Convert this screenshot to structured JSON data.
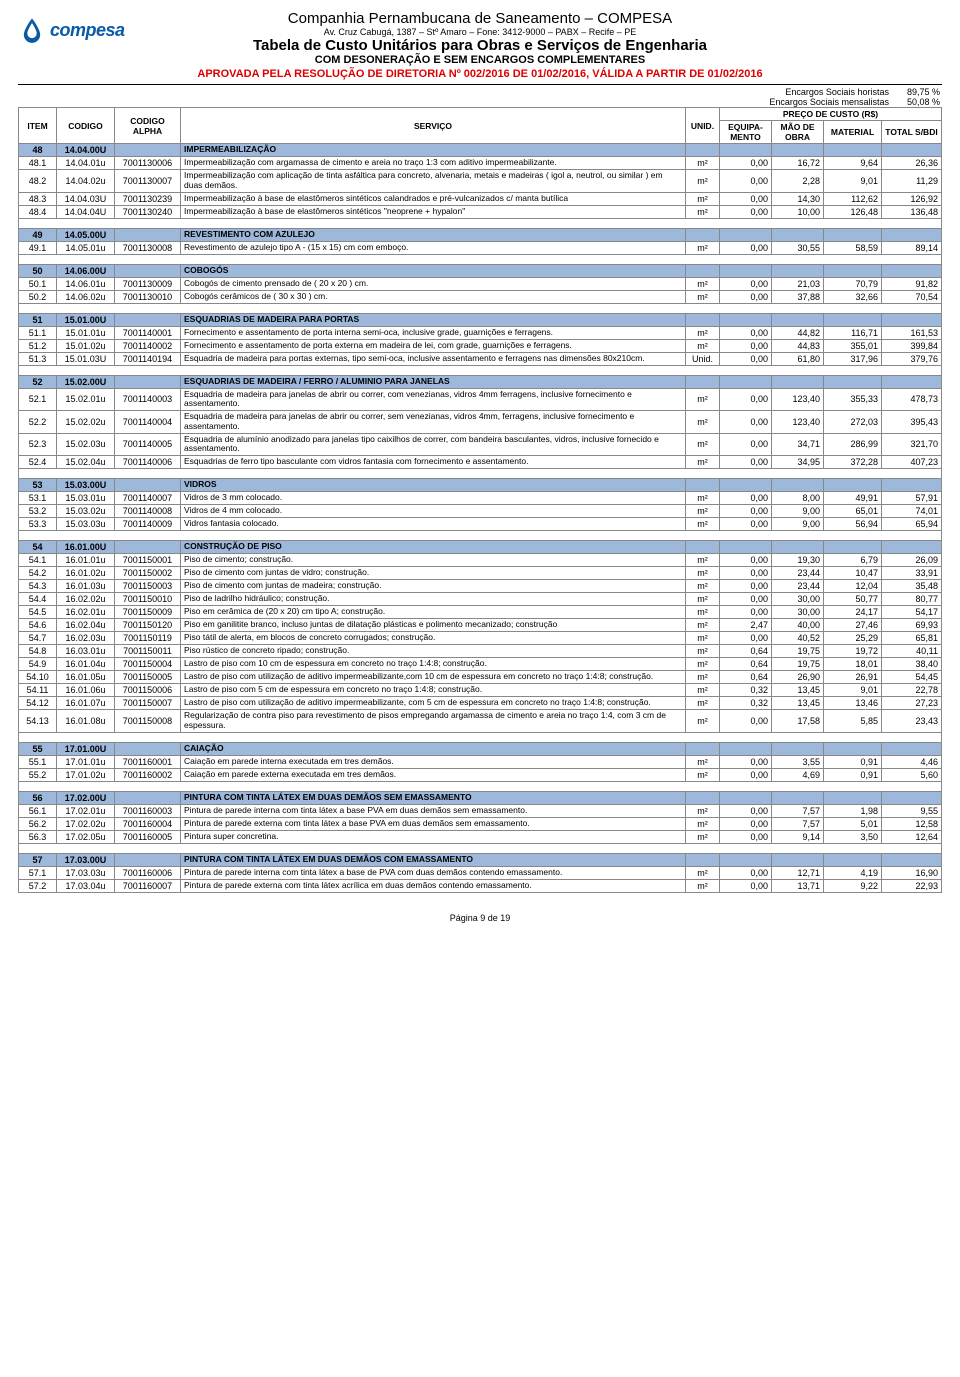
{
  "header": {
    "logo_text": "compesa",
    "company": "Companhia Pernambucana de Saneamento – COMPESA",
    "address": "Av. Cruz Cabugá, 1387 – Stº Amaro – Fone: 3412-9000 – PABX – Recife – PE",
    "title": "Tabela de Custo Unitários para Obras e Serviços de Engenharia",
    "subtitle": "COM DESONERAÇÃO E SEM ENCARGOS COMPLEMENTARES",
    "approved": "APROVADA PELA RESOLUÇÃO DE DIRETORIA Nº 002/2016 DE 01/02/2016, VÁLIDA A PARTIR DE 01/02/2016",
    "enc_horistas_label": "Encargos Sociais horistas",
    "enc_horistas_val": "89,75 %",
    "enc_mensal_label": "Encargos Sociais mensalistas",
    "enc_mensal_val": "50,08 %"
  },
  "th": {
    "item": "ITEM",
    "codigo": "CODIGO",
    "alpha": "CODIGO ALPHA",
    "servico": "SERVIÇO",
    "unid": "UNID.",
    "preco": "PREÇO DE CUSTO (R$)",
    "equip": "EQUIPA-MENTO",
    "mao": "MÃO DE OBRA",
    "mat": "MATERIAL",
    "total": "TOTAL S/BDI"
  },
  "colors": {
    "section_bg": "#9db8da",
    "approved": "#d00000",
    "logo": "#0a5aa5"
  },
  "rows": [
    {
      "type": "section",
      "item": "48",
      "codigo": "14.04.00U",
      "serv": "IMPERMEABILIZAÇÃO"
    },
    {
      "type": "data",
      "item": "48.1",
      "codigo": "14.04.01u",
      "alpha": "7001130006",
      "serv": "Impermeabilização com argamassa de cimento e areia no traço 1:3 com aditivo impermeabilizante.",
      "unid": "m²",
      "eq": "0,00",
      "mao": "16,72",
      "mat": "9,64",
      "tot": "26,36"
    },
    {
      "type": "data",
      "item": "48.2",
      "codigo": "14.04.02u",
      "alpha": "7001130007",
      "serv": "Impermeabilização com aplicação de tinta asfáltica para concreto, alvenaria, metais e madeiras ( igol a, neutrol, ou similar ) em duas demãos.",
      "unid": "m²",
      "eq": "0,00",
      "mao": "2,28",
      "mat": "9,01",
      "tot": "11,29"
    },
    {
      "type": "data",
      "item": "48.3",
      "codigo": "14.04.03U",
      "alpha": "7001130239",
      "serv": "Impermeabilização à base de elastômeros sintéticos calandrados e pré-vulcanizados c/ manta butílica",
      "unid": "m²",
      "eq": "0,00",
      "mao": "14,30",
      "mat": "112,62",
      "tot": "126,92"
    },
    {
      "type": "data",
      "item": "48.4",
      "codigo": "14.04.04U",
      "alpha": "7001130240",
      "serv": "Impermeabilização à base de elastômeros sintéticos \"neoprene + hypalon\"",
      "unid": "m²",
      "eq": "0,00",
      "mao": "10,00",
      "mat": "126,48",
      "tot": "136,48"
    },
    {
      "type": "blank"
    },
    {
      "type": "section",
      "item": "49",
      "codigo": "14.05.00U",
      "serv": "REVESTIMENTO COM AZULEJO"
    },
    {
      "type": "data",
      "item": "49.1",
      "codigo": "14.05.01u",
      "alpha": "7001130008",
      "serv": "Revestimento de azulejo tipo A - (15 x 15) cm com emboço.",
      "unid": "m²",
      "eq": "0,00",
      "mao": "30,55",
      "mat": "58,59",
      "tot": "89,14"
    },
    {
      "type": "blank"
    },
    {
      "type": "section",
      "item": "50",
      "codigo": "14.06.00U",
      "serv": "COBOGÓS"
    },
    {
      "type": "data",
      "item": "50.1",
      "codigo": "14.06.01u",
      "alpha": "7001130009",
      "serv": "Cobogós de cimento prensado de ( 20 x 20 ) cm.",
      "unid": "m²",
      "eq": "0,00",
      "mao": "21,03",
      "mat": "70,79",
      "tot": "91,82"
    },
    {
      "type": "data",
      "item": "50.2",
      "codigo": "14.06.02u",
      "alpha": "7001130010",
      "serv": "Cobogós cerâmicos de ( 30 x 30 ) cm.",
      "unid": "m²",
      "eq": "0,00",
      "mao": "37,88",
      "mat": "32,66",
      "tot": "70,54"
    },
    {
      "type": "blank"
    },
    {
      "type": "section",
      "item": "51",
      "codigo": "15.01.00U",
      "serv": "ESQUADRIAS DE MADEIRA PARA PORTAS"
    },
    {
      "type": "data",
      "item": "51.1",
      "codigo": "15.01.01u",
      "alpha": "7001140001",
      "serv": "Fornecimento e assentamento de porta interna semi-oca, inclusive grade, guarnições e ferragens.",
      "unid": "m²",
      "eq": "0,00",
      "mao": "44,82",
      "mat": "116,71",
      "tot": "161,53"
    },
    {
      "type": "data",
      "item": "51.2",
      "codigo": "15.01.02u",
      "alpha": "7001140002",
      "serv": "Fornecimento e assentamento de porta externa em madeira de lei, com grade, guarnições e ferragens.",
      "unid": "m²",
      "eq": "0,00",
      "mao": "44,83",
      "mat": "355,01",
      "tot": "399,84"
    },
    {
      "type": "data",
      "item": "51.3",
      "codigo": "15.01.03U",
      "alpha": "7001140194",
      "serv": "Esquadria de madeira para portas externas, tipo semi-oca, inclusive assentamento e ferragens nas dimensões 80x210cm.",
      "unid": "Unid.",
      "eq": "0,00",
      "mao": "61,80",
      "mat": "317,96",
      "tot": "379,76"
    },
    {
      "type": "blank"
    },
    {
      "type": "section",
      "item": "52",
      "codigo": "15.02.00U",
      "serv": "ESQUADRIAS DE MADEIRA / FERRO / ALUMINIO PARA JANELAS"
    },
    {
      "type": "data",
      "item": "52.1",
      "codigo": "15.02.01u",
      "alpha": "7001140003",
      "serv": "Esquadria de madeira para janelas de abrir ou correr, com venezianas, vidros 4mm ferragens, inclusive fornecimento e assentamento.",
      "unid": "m²",
      "eq": "0,00",
      "mao": "123,40",
      "mat": "355,33",
      "tot": "478,73"
    },
    {
      "type": "data",
      "item": "52.2",
      "codigo": "15.02.02u",
      "alpha": "7001140004",
      "serv": "Esquadria de madeira para janelas de abrir ou correr, sem venezianas, vidros 4mm, ferragens, inclusive fornecimento e assentamento.",
      "unid": "m²",
      "eq": "0,00",
      "mao": "123,40",
      "mat": "272,03",
      "tot": "395,43"
    },
    {
      "type": "data",
      "item": "52.3",
      "codigo": "15.02.03u",
      "alpha": "7001140005",
      "serv": "Esquadria de alumínio anodizado para janelas tipo caixilhos de correr, com bandeira basculantes, vidros, inclusive fornecido e assentamento.",
      "unid": "m²",
      "eq": "0,00",
      "mao": "34,71",
      "mat": "286,99",
      "tot": "321,70"
    },
    {
      "type": "data",
      "item": "52.4",
      "codigo": "15.02.04u",
      "alpha": "7001140006",
      "serv": "Esquadrias de ferro tipo basculante com vidros fantasia com fornecimento e assentamento.",
      "unid": "m²",
      "eq": "0,00",
      "mao": "34,95",
      "mat": "372,28",
      "tot": "407,23"
    },
    {
      "type": "blank"
    },
    {
      "type": "section",
      "item": "53",
      "codigo": "15.03.00U",
      "serv": "VIDROS"
    },
    {
      "type": "data",
      "item": "53.1",
      "codigo": "15.03.01u",
      "alpha": "7001140007",
      "serv": "Vidros de 3 mm colocado.",
      "unid": "m²",
      "eq": "0,00",
      "mao": "8,00",
      "mat": "49,91",
      "tot": "57,91"
    },
    {
      "type": "data",
      "item": "53.2",
      "codigo": "15.03.02u",
      "alpha": "7001140008",
      "serv": "Vidros de 4 mm colocado.",
      "unid": "m²",
      "eq": "0,00",
      "mao": "9,00",
      "mat": "65,01",
      "tot": "74,01"
    },
    {
      "type": "data",
      "item": "53.3",
      "codigo": "15.03.03u",
      "alpha": "7001140009",
      "serv": "Vidros fantasia colocado.",
      "unid": "m²",
      "eq": "0,00",
      "mao": "9,00",
      "mat": "56,94",
      "tot": "65,94"
    },
    {
      "type": "blank"
    },
    {
      "type": "section",
      "item": "54",
      "codigo": "16.01.00U",
      "serv": "CONSTRUÇÃO DE PISO"
    },
    {
      "type": "data",
      "item": "54.1",
      "codigo": "16.01.01u",
      "alpha": "7001150001",
      "serv": "Piso de cimento; construção.",
      "unid": "m²",
      "eq": "0,00",
      "mao": "19,30",
      "mat": "6,79",
      "tot": "26,09"
    },
    {
      "type": "data",
      "item": "54.2",
      "codigo": "16.01.02u",
      "alpha": "7001150002",
      "serv": "Piso de cimento com juntas de vidro; construção.",
      "unid": "m²",
      "eq": "0,00",
      "mao": "23,44",
      "mat": "10,47",
      "tot": "33,91"
    },
    {
      "type": "data",
      "item": "54.3",
      "codigo": "16.01.03u",
      "alpha": "7001150003",
      "serv": "Piso de cimento com juntas de madeira; construção.",
      "unid": "m²",
      "eq": "0,00",
      "mao": "23,44",
      "mat": "12,04",
      "tot": "35,48"
    },
    {
      "type": "data",
      "item": "54.4",
      "codigo": "16.02.02u",
      "alpha": "7001150010",
      "serv": "Piso de ladrilho hidráulico; construção.",
      "unid": "m²",
      "eq": "0,00",
      "mao": "30,00",
      "mat": "50,77",
      "tot": "80,77"
    },
    {
      "type": "data",
      "item": "54.5",
      "codigo": "16.02.01u",
      "alpha": "7001150009",
      "serv": "Piso em cerâmica de (20 x 20) cm tipo A; construção.",
      "unid": "m²",
      "eq": "0,00",
      "mao": "30,00",
      "mat": "24,17",
      "tot": "54,17"
    },
    {
      "type": "data",
      "item": "54.6",
      "codigo": "16.02.04u",
      "alpha": "7001150120",
      "serv": "Piso em ganilitite branco, incluso juntas de dilatação plásticas e polimento mecanizado; construção",
      "unid": "m²",
      "eq": "2,47",
      "mao": "40,00",
      "mat": "27,46",
      "tot": "69,93"
    },
    {
      "type": "data",
      "item": "54.7",
      "codigo": "16.02.03u",
      "alpha": "7001150119",
      "serv": "Piso tátil de alerta, em blocos de concreto corrugados; construção.",
      "unid": "m²",
      "eq": "0,00",
      "mao": "40,52",
      "mat": "25,29",
      "tot": "65,81"
    },
    {
      "type": "data",
      "item": "54.8",
      "codigo": "16.03.01u",
      "alpha": "7001150011",
      "serv": "Piso rústico de concreto ripado; construção.",
      "unid": "m²",
      "eq": "0,64",
      "mao": "19,75",
      "mat": "19,72",
      "tot": "40,11"
    },
    {
      "type": "data",
      "item": "54.9",
      "codigo": "16.01.04u",
      "alpha": "7001150004",
      "serv": "Lastro de piso com 10 cm de espessura em concreto no traço 1:4:8; construção.",
      "unid": "m²",
      "eq": "0,64",
      "mao": "19,75",
      "mat": "18,01",
      "tot": "38,40"
    },
    {
      "type": "data",
      "item": "54.10",
      "codigo": "16.01.05u",
      "alpha": "7001150005",
      "serv": "Lastro de piso com utilização de aditivo impermeabilizante,com 10 cm de espessura em concreto no traço 1:4:8; construção.",
      "unid": "m²",
      "eq": "0,64",
      "mao": "26,90",
      "mat": "26,91",
      "tot": "54,45"
    },
    {
      "type": "data",
      "item": "54.11",
      "codigo": "16.01.06u",
      "alpha": "7001150006",
      "serv": "Lastro de piso com 5 cm de espessura em concreto no traço 1:4:8; construção.",
      "unid": "m²",
      "eq": "0,32",
      "mao": "13,45",
      "mat": "9,01",
      "tot": "22,78"
    },
    {
      "type": "data",
      "item": "54.12",
      "codigo": "16.01.07u",
      "alpha": "7001150007",
      "serv": "Lastro de piso com utilização de aditivo impermeabilizante, com 5 cm de espessura em concreto no traço 1:4:8; construção.",
      "unid": "m²",
      "eq": "0,32",
      "mao": "13,45",
      "mat": "13,46",
      "tot": "27,23"
    },
    {
      "type": "data",
      "item": "54.13",
      "codigo": "16.01.08u",
      "alpha": "7001150008",
      "serv": "Regularização de contra piso para revestimento de pisos empregando argamassa de cimento e areia no traço 1:4, com 3 cm de espessura.",
      "unid": "m²",
      "eq": "0,00",
      "mao": "17,58",
      "mat": "5,85",
      "tot": "23,43"
    },
    {
      "type": "blank"
    },
    {
      "type": "section",
      "item": "55",
      "codigo": "17.01.00U",
      "serv": "CAIAÇÃO"
    },
    {
      "type": "data",
      "item": "55.1",
      "codigo": "17.01.01u",
      "alpha": "7001160001",
      "serv": "Caiação em parede interna executada em tres demãos.",
      "unid": "m²",
      "eq": "0,00",
      "mao": "3,55",
      "mat": "0,91",
      "tot": "4,46"
    },
    {
      "type": "data",
      "item": "55.2",
      "codigo": "17.01.02u",
      "alpha": "7001160002",
      "serv": "Caiação em parede externa executada em tres demãos.",
      "unid": "m²",
      "eq": "0,00",
      "mao": "4,69",
      "mat": "0,91",
      "tot": "5,60"
    },
    {
      "type": "blank"
    },
    {
      "type": "section",
      "item": "56",
      "codigo": "17.02.00U",
      "serv": "PINTURA COM TINTA LÁTEX EM DUAS DEMÃOS SEM EMASSAMENTO"
    },
    {
      "type": "data",
      "item": "56.1",
      "codigo": "17.02.01u",
      "alpha": "7001160003",
      "serv": "Pintura de parede interna com tinta látex a base PVA em duas demãos sem emassamento.",
      "unid": "m²",
      "eq": "0,00",
      "mao": "7,57",
      "mat": "1,98",
      "tot": "9,55"
    },
    {
      "type": "data",
      "item": "56.2",
      "codigo": "17.02.02u",
      "alpha": "7001160004",
      "serv": "Pintura de parede externa com tinta látex a base PVA em duas demãos sem emassamento.",
      "unid": "m²",
      "eq": "0,00",
      "mao": "7,57",
      "mat": "5,01",
      "tot": "12,58"
    },
    {
      "type": "data",
      "item": "56.3",
      "codigo": "17.02.05u",
      "alpha": "7001160005",
      "serv": "Pintura super concretina.",
      "unid": "m²",
      "eq": "0,00",
      "mao": "9,14",
      "mat": "3,50",
      "tot": "12,64"
    },
    {
      "type": "blank"
    },
    {
      "type": "section",
      "item": "57",
      "codigo": "17.03.00U",
      "serv": "PINTURA COM TINTA LÁTEX EM DUAS DEMÃOS COM EMASSAMENTO"
    },
    {
      "type": "data",
      "item": "57.1",
      "codigo": "17.03.03u",
      "alpha": "7001160006",
      "serv": "Pintura de parede interna com tinta látex a base de PVA com duas demãos contendo emassamento.",
      "unid": "m²",
      "eq": "0,00",
      "mao": "12,71",
      "mat": "4,19",
      "tot": "16,90"
    },
    {
      "type": "data",
      "item": "57.2",
      "codigo": "17.03.04u",
      "alpha": "7001160007",
      "serv": "Pintura de parede externa com tinta látex acrílica em duas demãos contendo emassamento.",
      "unid": "m²",
      "eq": "0,00",
      "mao": "13,71",
      "mat": "9,22",
      "tot": "22,93"
    }
  ],
  "footer": "Página 9 de 19"
}
